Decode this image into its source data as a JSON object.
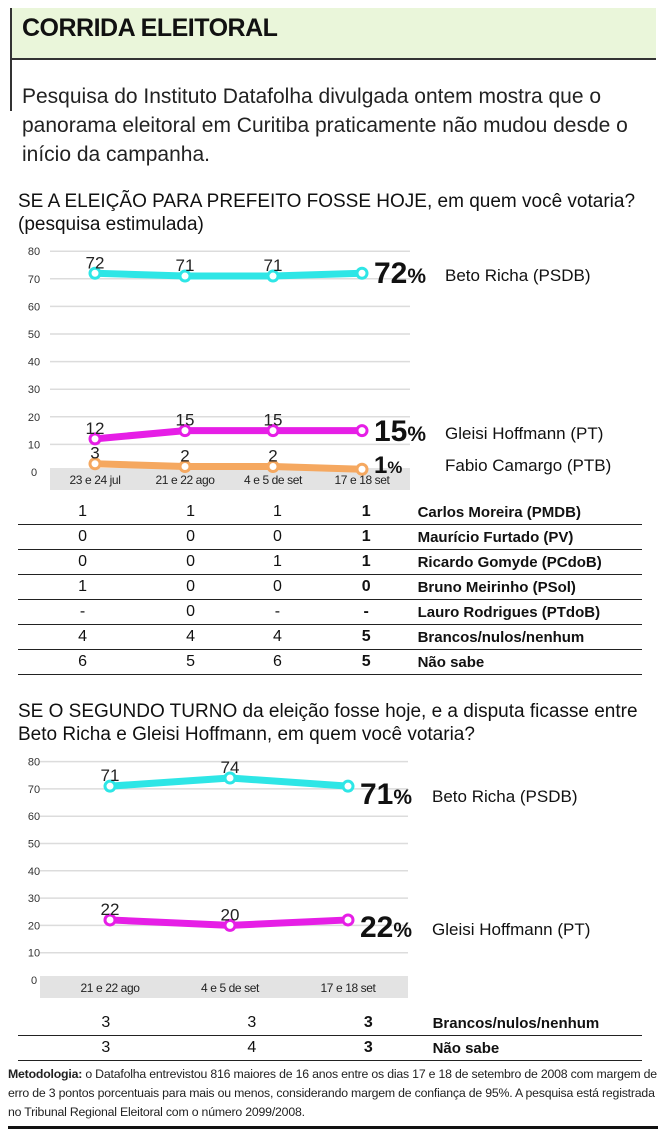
{
  "header": {
    "title": "CORRIDA ELEITORAL",
    "intro": "Pesquisa do Instituto Datafolha divulgada ontem mostra que o panorama eleitoral em Curitiba praticamente não mudou desde o início da campanha."
  },
  "first_round": {
    "question_caps": "SE A ELEIÇÃO PARA PREFEITO FOSSE HOJE,",
    "question_rest": " em quem você votaria? (pesquisa estimulada)",
    "table": {
      "rows": [
        {
          "values": [
            "1",
            "1",
            "1",
            "1"
          ],
          "label": "Carlos Moreira (PMDB)"
        },
        {
          "values": [
            "0",
            "0",
            "0",
            "1"
          ],
          "label": "Maurício Furtado (PV)"
        },
        {
          "values": [
            "0",
            "0",
            "1",
            "1"
          ],
          "label": "Ricardo Gomyde (PCdoB)"
        },
        {
          "values": [
            "1",
            "0",
            "0",
            "0"
          ],
          "label": "Bruno Meirinho (PSol)"
        },
        {
          "values": [
            "-",
            "0",
            "-",
            "-"
          ],
          "label": "Lauro Rodrigues (PTdoB)"
        },
        {
          "values": [
            "4",
            "4",
            "4",
            "5"
          ],
          "label": "Brancos/nulos/nenhum"
        },
        {
          "values": [
            "6",
            "5",
            "6",
            "5"
          ],
          "label": "Não sabe"
        }
      ]
    }
  },
  "second_round": {
    "question_caps": "SE O SEGUNDO TURNO",
    "question_rest": " da eleição fosse hoje, e a disputa ficasse entre Beto Richa e Gleisi Hoffmann, em quem você votaria?",
    "table": {
      "rows": [
        {
          "values": [
            "3",
            "3",
            "3"
          ],
          "label": "Brancos/nulos/nenhum"
        },
        {
          "values": [
            "3",
            "4",
            "3"
          ],
          "label": "Não sabe"
        }
      ]
    }
  },
  "methodology": {
    "label": "Metodologia:",
    "text": " o Datafolha entrevistou 816 maiores de 16 anos entre os dias 17 e 18 de setembro de 2008 com margem de erro de 3 pontos porcentuais para mais ou menos, considerando margem de confiança de 95%. A pesquisa está registrada no Tribunal Regional Eleitoral com o número 2099/2008."
  },
  "chart_data": [
    {
      "type": "line",
      "title": "SE A ELEIÇÃO PARA PREFEITO FOSSE HOJE, em quem você votaria? (pesquisa estimulada)",
      "categories": [
        "23 e 24 jul",
        "21 e 22 ago",
        "4 e 5 de set",
        "17 e 18 set"
      ],
      "yticks": [
        0,
        10,
        20,
        30,
        40,
        50,
        60,
        70,
        80
      ],
      "ylim": [
        0,
        80
      ],
      "grid": true,
      "series": [
        {
          "name": "Beto Richa (PSDB)",
          "values": [
            72,
            71,
            71,
            72
          ],
          "color": "#2ee6e6",
          "final_label": "72%"
        },
        {
          "name": "Gleisi Hoffmann (PT)",
          "values": [
            12,
            15,
            15,
            15
          ],
          "color": "#e61ee6",
          "final_label": "15%"
        },
        {
          "name": "Fabio Camargo (PTB)",
          "values": [
            3,
            2,
            2,
            1
          ],
          "color": "#f5a860",
          "final_label": "1%"
        }
      ]
    },
    {
      "type": "line",
      "title": "SE O SEGUNDO TURNO da eleição fosse hoje, e a disputa ficasse entre Beto Richa e Gleisi Hoffmann, em quem você votaria?",
      "categories": [
        "21 e 22 ago",
        "4 e 5 de set",
        "17 e 18 set"
      ],
      "yticks": [
        0,
        10,
        20,
        30,
        40,
        50,
        60,
        70,
        80
      ],
      "ylim": [
        0,
        80
      ],
      "grid": true,
      "series": [
        {
          "name": "Beto Richa (PSDB)",
          "values": [
            71,
            74,
            71
          ],
          "color": "#2ee6e6",
          "final_label": "71%"
        },
        {
          "name": "Gleisi Hoffmann (PT)",
          "values": [
            22,
            20,
            22
          ],
          "color": "#e61ee6",
          "final_label": "22%"
        }
      ]
    }
  ]
}
